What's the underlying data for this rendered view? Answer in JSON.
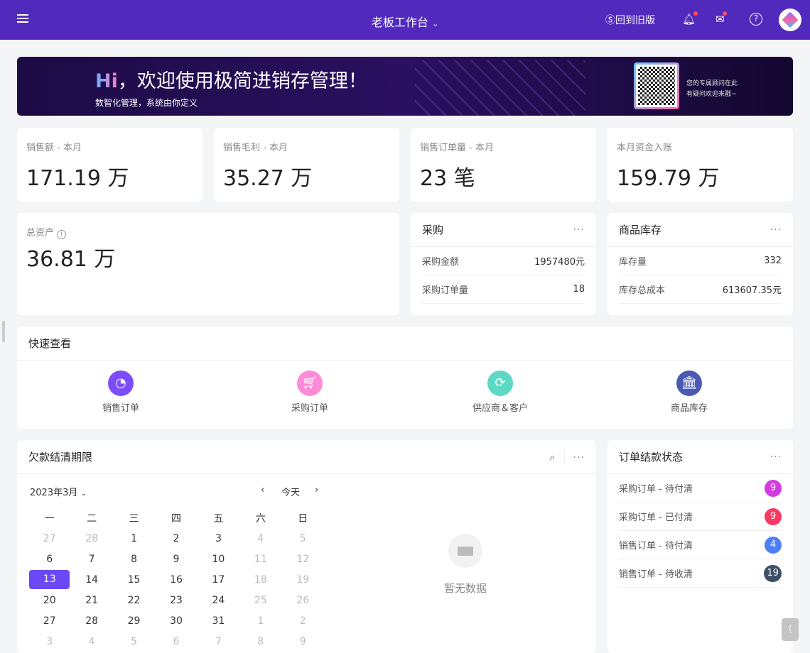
{
  "header": {
    "title": "老板工作台",
    "old_version": "回到旧版"
  },
  "banner": {
    "hi": "Hi",
    "headline": "，欢迎使用极简进销存管理！",
    "sub": "数智化管理，系统由你定义",
    "qr_line1": "您的专属顾问在此",
    "qr_line2": "有疑问欢迎来戳~"
  },
  "stats": [
    {
      "label": "销售额 - 本月",
      "value": "171.19 万"
    },
    {
      "label": "销售毛利 - 本月",
      "value": "35.27 万"
    },
    {
      "label": "销售订单量 - 本月",
      "value": "23 笔"
    },
    {
      "label": "本月资金入账",
      "value": "159.79 万"
    }
  ],
  "assets": {
    "label": "总资产",
    "value": "36.81 万"
  },
  "purchase": {
    "title": "采购",
    "rows": [
      {
        "k": "采购金额",
        "v": "1957480元"
      },
      {
        "k": "采购订单量",
        "v": "18"
      }
    ]
  },
  "stock": {
    "title": "商品库存",
    "rows": [
      {
        "k": "库存量",
        "v": "332"
      },
      {
        "k": "库存总成本",
        "v": "613607.35元"
      }
    ]
  },
  "quick": {
    "title": "快速查看",
    "items": [
      {
        "label": "销售订单",
        "color": "#7b4dfa",
        "icon": "pie-chart-icon"
      },
      {
        "label": "采购订单",
        "color": "#ff8ad8",
        "icon": "cart-icon"
      },
      {
        "label": "供应商＆客户",
        "color": "#5dd8c2",
        "icon": "refresh-icon"
      },
      {
        "label": "商品库存",
        "color": "#4a59b5",
        "icon": "bank-icon"
      }
    ]
  },
  "debt": {
    "title": "欠款结清期限",
    "month": "2023年3月",
    "today": "今天",
    "empty": "暂无数据",
    "weekdays": [
      "一",
      "二",
      "三",
      "四",
      "五",
      "六",
      "日"
    ],
    "weeks": [
      [
        "27",
        "28",
        "1",
        "2",
        "3",
        "4",
        "5"
      ],
      [
        "6",
        "7",
        "8",
        "9",
        "10",
        "11",
        "12"
      ],
      [
        "13",
        "14",
        "15",
        "16",
        "17",
        "18",
        "19"
      ],
      [
        "20",
        "21",
        "22",
        "23",
        "24",
        "25",
        "26"
      ],
      [
        "27",
        "28",
        "29",
        "30",
        "31",
        "1",
        "2"
      ],
      [
        "3",
        "4",
        "5",
        "6",
        "7",
        "8",
        "9"
      ]
    ],
    "selected": "13"
  },
  "order_status": {
    "title": "订单结款状态",
    "rows": [
      {
        "label": "采购订单 - 待付清",
        "count": "9",
        "color": "#d23be0"
      },
      {
        "label": "采购订单 - 已付清",
        "count": "9",
        "color": "#fa3a63"
      },
      {
        "label": "销售订单 - 待付清",
        "count": "4",
        "color": "#4f7ff5"
      },
      {
        "label": "销售订单 - 待收清",
        "count": "19",
        "color": "#3d5068"
      }
    ]
  }
}
